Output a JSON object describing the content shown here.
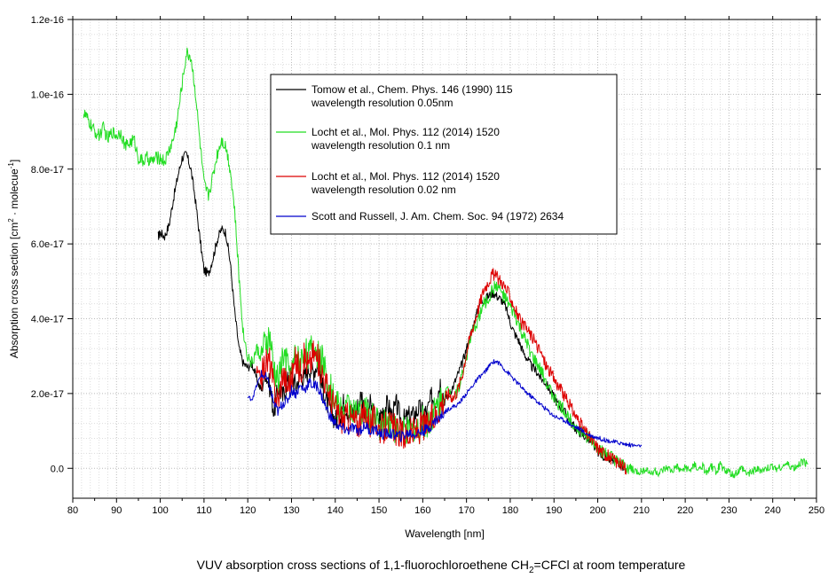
{
  "chart_data": {
    "type": "line",
    "xlabel": "Wavelength [nm]",
    "ylabel_parts": [
      "Absorption cross section [cm",
      "2",
      " · molecue",
      "-1",
      "]"
    ],
    "caption_parts": [
      "VUV absorption cross sections of 1,1-fluorochloroethene CH",
      "2",
      "=CFCl at room temperature"
    ],
    "xlim": [
      80,
      250
    ],
    "ylim": [
      -8e-18,
      1.2e-16
    ],
    "x_ticks": [
      80,
      90,
      100,
      110,
      120,
      130,
      140,
      150,
      160,
      170,
      180,
      190,
      200,
      210,
      220,
      230,
      240,
      250
    ],
    "x_tick_labels": [
      "80",
      "90",
      "100",
      "110",
      "120",
      "130",
      "140",
      "150",
      "160",
      "170",
      "180",
      "190",
      "200",
      "210",
      "220",
      "230",
      "240",
      "250"
    ],
    "y_ticks": [
      0,
      2e-17,
      4e-17,
      6e-17,
      8e-17,
      1e-16,
      1.2e-16
    ],
    "y_tick_labels": [
      "0.0",
      "2.0e-17",
      "4.0e-17",
      "6.0e-17",
      "8.0e-17",
      "1.0e-16",
      "1.2e-16"
    ],
    "grid": true,
    "legend_position": "top-center",
    "series": [
      {
        "name": "Tomow et al., Chem. Phys. 146 (1990) 115",
        "name_line2": "wavelength resolution 0.05nm",
        "color": "#000000",
        "noise": 0.25,
        "x": [
          99.5,
          100,
          101,
          102,
          103,
          104,
          105,
          106,
          107,
          108,
          109,
          110,
          111,
          112,
          113,
          114,
          115,
          116,
          117,
          118,
          119,
          120,
          121,
          122,
          123,
          124,
          125,
          126,
          127,
          128,
          129,
          130,
          131,
          132,
          133,
          134,
          135,
          136,
          137,
          138,
          139,
          140,
          141,
          142,
          143,
          144,
          145,
          146,
          147,
          148,
          149,
          150,
          151,
          152,
          153,
          154,
          155,
          156,
          157,
          158,
          159,
          160,
          161,
          162,
          163,
          164,
          165,
          166,
          167,
          168,
          169,
          170,
          171,
          172,
          173,
          174,
          175,
          176,
          177,
          178,
          179,
          180,
          181,
          182,
          183,
          184,
          185,
          186,
          187,
          188,
          189,
          190,
          191,
          192,
          193,
          194,
          195,
          196,
          197,
          198,
          199,
          200,
          201,
          202,
          203,
          204,
          205,
          206
        ],
        "y": [
          6.2,
          6.3,
          6.2,
          6.5,
          7.2,
          7.8,
          8.3,
          8.4,
          8.0,
          7.2,
          6.2,
          5.3,
          5.2,
          5.6,
          6.1,
          6.4,
          6.3,
          5.5,
          4.2,
          3.2,
          2.8,
          2.7,
          2.8,
          2.4,
          2.1,
          2.6,
          2.2,
          1.5,
          2.2,
          1.9,
          2.3,
          2.5,
          2.2,
          2.5,
          2.4,
          2.7,
          2.6,
          2.8,
          2.2,
          1.8,
          1.5,
          1.3,
          1.4,
          1.8,
          1.5,
          1.5,
          1.6,
          2.0,
          1.4,
          1.7,
          1.4,
          1.3,
          1.6,
          1.7,
          1.4,
          1.7,
          1.3,
          1.3,
          1.4,
          1.4,
          1.6,
          1.5,
          1.5,
          1.9,
          1.8,
          2.3,
          1.8,
          2.0,
          2.2,
          2.5,
          2.8,
          3.2,
          3.6,
          4.0,
          4.4,
          4.5,
          4.6,
          4.7,
          4.6,
          4.5,
          4.3,
          3.9,
          3.6,
          3.4,
          3.1,
          2.9,
          2.7,
          2.6,
          2.4,
          2.3,
          2.1,
          1.9,
          1.7,
          1.6,
          1.4,
          1.2,
          1.05,
          0.95,
          0.85,
          0.75,
          0.6,
          0.45,
          0.35,
          0.28,
          0.22,
          0.18,
          0.12,
          -0.05
        ]
      },
      {
        "name": "Locht et al., Mol. Phys. 112 (2014) 1520",
        "name_line2": "wavelength resolution 0.1 nm",
        "color": "#22dd22",
        "noise": 0.35,
        "x": [
          82.5,
          83,
          84,
          85,
          86,
          87,
          88,
          89,
          90,
          91,
          92,
          93,
          94,
          95,
          96,
          97,
          98,
          99,
          100,
          101,
          102,
          103,
          104,
          105,
          106,
          107,
          108,
          109,
          110,
          111,
          112,
          113,
          114,
          115,
          116,
          117,
          118,
          119,
          120,
          121,
          122,
          123,
          124,
          125,
          126,
          127,
          128,
          129,
          130,
          131,
          132,
          133,
          134,
          135,
          136,
          137,
          138,
          139,
          140,
          141,
          142,
          143,
          144,
          145,
          146,
          147,
          148,
          149,
          150,
          151,
          152,
          153,
          154,
          155,
          156,
          157,
          158,
          159,
          160,
          161,
          162,
          163,
          164,
          165,
          166,
          167,
          168,
          169,
          170,
          171,
          172,
          173,
          174,
          175,
          176,
          177,
          178,
          179,
          180,
          181,
          182,
          183,
          184,
          185,
          186,
          187,
          188,
          189,
          190,
          191,
          192,
          193,
          194,
          195,
          196,
          197,
          198,
          199,
          200,
          201,
          202,
          203,
          204,
          205,
          206,
          207,
          208,
          209,
          210,
          211,
          212,
          213,
          214,
          215,
          216,
          217,
          218,
          219,
          220,
          221,
          222,
          223,
          224,
          225,
          226,
          227,
          228,
          229,
          230,
          231,
          232,
          233,
          234,
          235,
          236,
          237,
          238,
          239,
          240,
          241,
          242,
          243,
          244,
          245,
          246,
          247,
          248
        ],
        "y": [
          9.5,
          9.4,
          9.2,
          9.0,
          8.9,
          9.1,
          8.8,
          9.0,
          8.9,
          9.0,
          8.6,
          8.7,
          8.8,
          8.3,
          8.2,
          8.3,
          8.2,
          8.3,
          8.3,
          8.2,
          8.5,
          8.8,
          9.4,
          10.3,
          11.1,
          11.0,
          10.1,
          8.8,
          7.6,
          7.3,
          7.8,
          8.4,
          8.8,
          8.6,
          8.0,
          6.9,
          5.1,
          3.6,
          3.0,
          2.8,
          3.2,
          3.0,
          3.3,
          3.5,
          2.6,
          2.3,
          3.0,
          2.8,
          2.5,
          3.1,
          2.8,
          3.2,
          3.0,
          3.3,
          3.0,
          2.9,
          2.5,
          2.1,
          1.8,
          1.6,
          1.5,
          1.7,
          1.6,
          1.4,
          1.4,
          1.6,
          1.3,
          1.4,
          1.2,
          1.1,
          1.3,
          1.2,
          1.0,
          0.9,
          1.0,
          0.9,
          1.1,
          1.0,
          1.3,
          1.2,
          1.4,
          1.6,
          1.8,
          2.0,
          2.1,
          1.9,
          2.1,
          2.5,
          3.0,
          3.5,
          3.8,
          4.1,
          4.4,
          4.5,
          4.8,
          4.9,
          4.7,
          4.5,
          4.3,
          4.1,
          3.8,
          3.5,
          3.3,
          3.0,
          2.8,
          2.6,
          2.4,
          2.1,
          1.9,
          1.7,
          1.6,
          1.4,
          1.3,
          1.1,
          1.0,
          0.9,
          0.8,
          0.7,
          0.55,
          0.45,
          0.35,
          0.3,
          0.2,
          0.1,
          0.05,
          0.0,
          -0.05,
          -0.1,
          -0.1,
          0.0,
          -0.15,
          -0.05,
          -0.15,
          -0.05,
          0.0,
          -0.1,
          0.05,
          -0.1,
          0.05,
          -0.1,
          0.1,
          -0.05,
          0.05,
          -0.15,
          0.05,
          -0.1,
          0.1,
          -0.05,
          -0.1,
          -0.2,
          -0.1,
          0.0,
          -0.15,
          -0.1,
          -0.05,
          -0.05,
          -0.05,
          0.0,
          0.05,
          0.0,
          0.05,
          0.1,
          0.05,
          0.0,
          0.1,
          0.2,
          0.1
        ]
      },
      {
        "name": "Locht et al., Mol. Phys. 112 (2014) 1520",
        "name_line2": "wavelength resolution 0.02 nm",
        "color": "#dd0000",
        "noise": 0.35,
        "x": [
          122,
          123,
          124,
          125,
          126,
          127,
          128,
          129,
          130,
          131,
          132,
          133,
          134,
          135,
          136,
          137,
          138,
          139,
          140,
          141,
          142,
          143,
          144,
          145,
          146,
          147,
          148,
          149,
          150,
          151,
          152,
          153,
          154,
          155,
          156,
          157,
          158,
          159,
          160,
          161,
          162,
          163,
          164,
          165,
          166,
          167,
          168,
          169,
          170,
          171,
          172,
          173,
          174,
          175,
          176,
          177,
          178,
          179,
          180,
          181,
          182,
          183,
          184,
          185,
          186,
          187,
          188,
          189,
          190,
          191,
          192,
          193,
          194,
          195,
          196,
          197,
          198,
          199,
          200,
          201,
          202,
          203,
          204,
          205,
          206,
          206.5
        ],
        "y": [
          2.6,
          2.4,
          2.8,
          2.9,
          2.1,
          1.8,
          2.6,
          2.2,
          2.4,
          2.9,
          2.6,
          3.0,
          2.7,
          3.1,
          2.9,
          2.6,
          2.2,
          1.9,
          1.6,
          1.4,
          1.3,
          1.4,
          1.3,
          1.2,
          1.3,
          1.5,
          1.2,
          1.3,
          1.1,
          1.0,
          1.2,
          1.1,
          1.0,
          0.9,
          0.9,
          0.9,
          1.0,
          1.0,
          1.2,
          1.1,
          1.3,
          1.4,
          1.7,
          1.9,
          2.0,
          1.9,
          2.1,
          2.5,
          3.1,
          3.6,
          4.0,
          4.4,
          4.8,
          5.0,
          5.2,
          5.1,
          5.0,
          4.8,
          4.6,
          4.3,
          4.0,
          3.8,
          3.7,
          3.5,
          3.3,
          3.1,
          2.8,
          2.6,
          2.4,
          2.2,
          2.0,
          1.8,
          1.6,
          1.4,
          1.2,
          1.0,
          0.85,
          0.7,
          0.55,
          0.45,
          0.35,
          0.28,
          0.2,
          0.12,
          0.02,
          -0.1
        ]
      },
      {
        "name": "Scott and Russell, J. Am. Chem. Soc. 94 (1972) 2634",
        "name_line2": "",
        "color": "#0000cc",
        "noise": 0.12,
        "x": [
          120,
          121,
          122,
          123,
          124,
          125,
          126,
          127,
          128,
          129,
          130,
          131,
          132,
          133,
          134,
          135,
          136,
          137,
          138,
          139,
          140,
          141,
          142,
          143,
          144,
          145,
          146,
          147,
          148,
          149,
          150,
          151,
          152,
          153,
          154,
          155,
          156,
          157,
          158,
          159,
          160,
          161,
          162,
          163,
          164,
          165,
          166,
          167,
          168,
          169,
          170,
          171,
          172,
          173,
          174,
          175,
          176,
          177,
          178,
          179,
          180,
          181,
          182,
          183,
          184,
          185,
          186,
          187,
          188,
          189,
          190,
          191,
          192,
          193,
          194,
          195,
          196,
          197,
          198,
          199,
          200,
          201,
          202,
          203,
          204,
          205,
          206,
          207,
          208,
          209,
          210
        ],
        "y": [
          1.9,
          1.85,
          2.2,
          2.5,
          2.45,
          2.2,
          1.7,
          1.5,
          1.75,
          1.8,
          2.1,
          2.0,
          2.2,
          2.1,
          2.3,
          2.2,
          2.2,
          1.9,
          1.6,
          1.35,
          1.2,
          1.1,
          1.05,
          1.0,
          1.1,
          1.0,
          1.05,
          1.15,
          1.0,
          1.05,
          0.95,
          0.9,
          0.95,
          0.9,
          0.9,
          0.85,
          0.9,
          0.95,
          0.9,
          0.95,
          1.0,
          1.05,
          1.15,
          1.3,
          1.35,
          1.5,
          1.6,
          1.65,
          1.7,
          1.85,
          2.0,
          2.15,
          2.3,
          2.45,
          2.55,
          2.7,
          2.85,
          2.85,
          2.75,
          2.6,
          2.5,
          2.35,
          2.25,
          2.1,
          2.0,
          1.9,
          1.8,
          1.7,
          1.6,
          1.5,
          1.4,
          1.35,
          1.3,
          1.25,
          1.15,
          1.1,
          1.05,
          0.95,
          0.9,
          0.85,
          0.82,
          0.78,
          0.75,
          0.72,
          0.7,
          0.68,
          0.65,
          0.63,
          0.62,
          0.6,
          0.6
        ]
      }
    ]
  }
}
